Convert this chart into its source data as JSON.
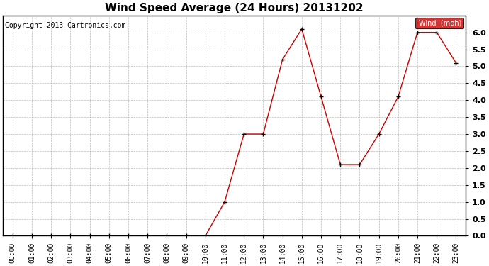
{
  "title": "Wind Speed Average (24 Hours) 20131202",
  "copyright_text": "Copyright 2013 Cartronics.com",
  "legend_label": "Wind  (mph)",
  "x_labels": [
    "00:00",
    "01:00",
    "02:00",
    "03:00",
    "04:00",
    "05:00",
    "06:00",
    "07:00",
    "08:00",
    "09:00",
    "10:00",
    "11:00",
    "12:00",
    "13:00",
    "14:00",
    "15:00",
    "16:00",
    "17:00",
    "18:00",
    "19:00",
    "20:00",
    "21:00",
    "22:00",
    "23:00"
  ],
  "y_values": [
    0.0,
    0.0,
    0.0,
    0.0,
    0.0,
    0.0,
    0.0,
    0.0,
    0.0,
    0.0,
    0.0,
    1.0,
    3.0,
    3.0,
    5.2,
    6.1,
    4.1,
    2.1,
    2.1,
    3.0,
    4.1,
    6.0,
    6.0,
    5.1
  ],
  "ylim": [
    0.0,
    6.5
  ],
  "yticks": [
    0.0,
    0.5,
    1.0,
    1.5,
    2.0,
    2.5,
    3.0,
    3.5,
    4.0,
    4.5,
    5.0,
    5.5,
    6.0
  ],
  "line_color": "#cc0000",
  "marker_color": "#000000",
  "bg_color": "#ffffff",
  "grid_color": "#bbbbbb",
  "legend_bg": "#cc0000",
  "legend_text_color": "#ffffff",
  "title_fontsize": 11,
  "copyright_fontsize": 7,
  "tick_fontsize": 7,
  "ytick_fontsize": 8,
  "border_color": "#000000"
}
